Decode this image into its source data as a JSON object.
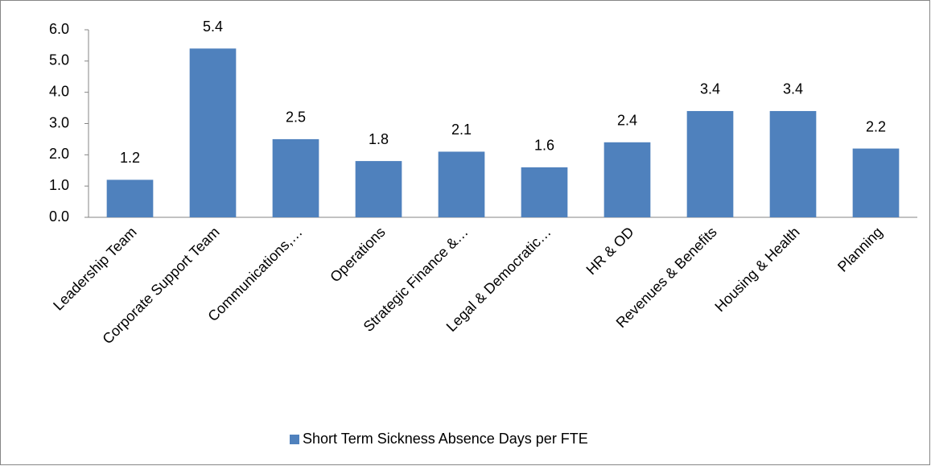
{
  "chart_data": {
    "type": "bar",
    "categories": [
      "Leadership Team",
      "Corporate Support Team",
      "Communications,…",
      "Operations",
      "Strategic Finance &…",
      "Legal & Democratic…",
      "HR & OD",
      "Revenues & Benefits",
      "Housing & Health",
      "Planning"
    ],
    "series": [
      {
        "name": "Short Term Sickness Absence Days per FTE",
        "color": "#4f81bd",
        "values": [
          1.2,
          5.4,
          2.5,
          1.8,
          2.1,
          1.6,
          2.4,
          3.4,
          3.4,
          2.2
        ]
      }
    ],
    "ylim": [
      0,
      6
    ],
    "yticks": [
      {
        "value": 0,
        "label": "0.0"
      },
      {
        "value": 1,
        "label": "1.0"
      },
      {
        "value": 2,
        "label": "2.0"
      },
      {
        "value": 3,
        "label": "3.0"
      },
      {
        "value": 4,
        "label": "4.0"
      },
      {
        "value": 5,
        "label": "5.0"
      },
      {
        "value": 6,
        "label": "6.0"
      }
    ],
    "grid": false,
    "legend": "bottom"
  }
}
